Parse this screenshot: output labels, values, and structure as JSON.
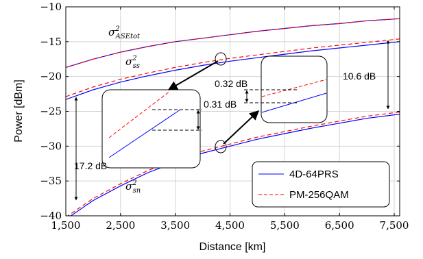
{
  "chart_data": {
    "type": "line",
    "xlabel": "Distance [km]",
    "ylabel": "Power [dBm]",
    "xlim": [
      1500,
      7600
    ],
    "ylim": [
      -40,
      -10
    ],
    "xticks": [
      1500,
      2500,
      3500,
      4500,
      5500,
      6500,
      7500
    ],
    "xtick_labels": [
      "1,500",
      "2,500",
      "3,500",
      "4,500",
      "5,500",
      "6,500",
      "7,500"
    ],
    "yticks": [
      -40,
      -35,
      -30,
      -25,
      -20,
      -15,
      -10
    ],
    "ytick_labels": [
      "−40",
      "−35",
      "−30",
      "−25",
      "−20",
      "−15",
      "−10"
    ],
    "grid": true,
    "legend_position": "bottom-right",
    "series": [
      {
        "name": "4D-64PRS",
        "color": "#0000ff",
        "dash": "solid"
      },
      {
        "name": "PM-256QAM",
        "color": "#ff0000",
        "dash": "dashed"
      }
    ],
    "curves": [
      {
        "group": "ASEtot",
        "x": [
          1500,
          2000,
          2500,
          3000,
          3500,
          4000,
          4500,
          5000,
          5500,
          6000,
          6500,
          7000,
          7600
        ],
        "values": {
          "4D-64PRS": [
            -18.7,
            -17.5,
            -16.5,
            -15.7,
            -15.0,
            -14.5,
            -14.0,
            -13.5,
            -13.1,
            -12.7,
            -12.4,
            -12.0,
            -11.7
          ],
          "PM-256QAM": [
            -18.7,
            -17.5,
            -16.5,
            -15.7,
            -15.0,
            -14.5,
            -14.0,
            -13.5,
            -13.1,
            -12.7,
            -12.4,
            -12.0,
            -11.7
          ]
        }
      },
      {
        "group": "ss",
        "x": [
          1500,
          2000,
          2500,
          3000,
          3500,
          4000,
          4500,
          5000,
          5500,
          6000,
          6500,
          7000,
          7600
        ],
        "values": {
          "4D-64PRS": [
            -23.3,
            -21.9,
            -20.8,
            -19.9,
            -19.1,
            -18.4,
            -17.8,
            -17.3,
            -16.8,
            -16.3,
            -15.9,
            -15.5,
            -15.0
          ],
          "PM-256QAM": [
            -22.9,
            -21.5,
            -20.4,
            -19.5,
            -18.7,
            -18.0,
            -17.4,
            -16.9,
            -16.4,
            -15.9,
            -15.5,
            -15.1,
            -14.6
          ]
        }
      },
      {
        "group": "sn",
        "x": [
          1500,
          2000,
          2500,
          3000,
          3500,
          4000,
          4500,
          5000,
          5500,
          6000,
          6500,
          7000,
          7600
        ],
        "values": {
          "4D-64PRS": [
            -40.5,
            -37.8,
            -35.7,
            -33.8,
            -32.3,
            -31.0,
            -30.0,
            -29.0,
            -28.2,
            -27.4,
            -26.7,
            -26.0,
            -25.4
          ],
          "PM-256QAM": [
            -40.2,
            -37.5,
            -35.4,
            -33.5,
            -32.0,
            -30.7,
            -29.7,
            -28.7,
            -27.9,
            -27.1,
            -26.4,
            -25.7,
            -25.1
          ]
        }
      }
    ],
    "curve_labels": [
      {
        "base": "σ",
        "sup": "2",
        "sub": "ASEtot"
      },
      {
        "base": "σ",
        "sup": "2",
        "sub": "ss"
      },
      {
        "base": "σ",
        "sup": "2",
        "sub": "sn"
      }
    ],
    "annotations": {
      "inset1_gap": "0.31 dB",
      "inset2_gap": "0.32 dB",
      "span_left": "17.2 dB",
      "span_right": "10.6 dB"
    }
  }
}
